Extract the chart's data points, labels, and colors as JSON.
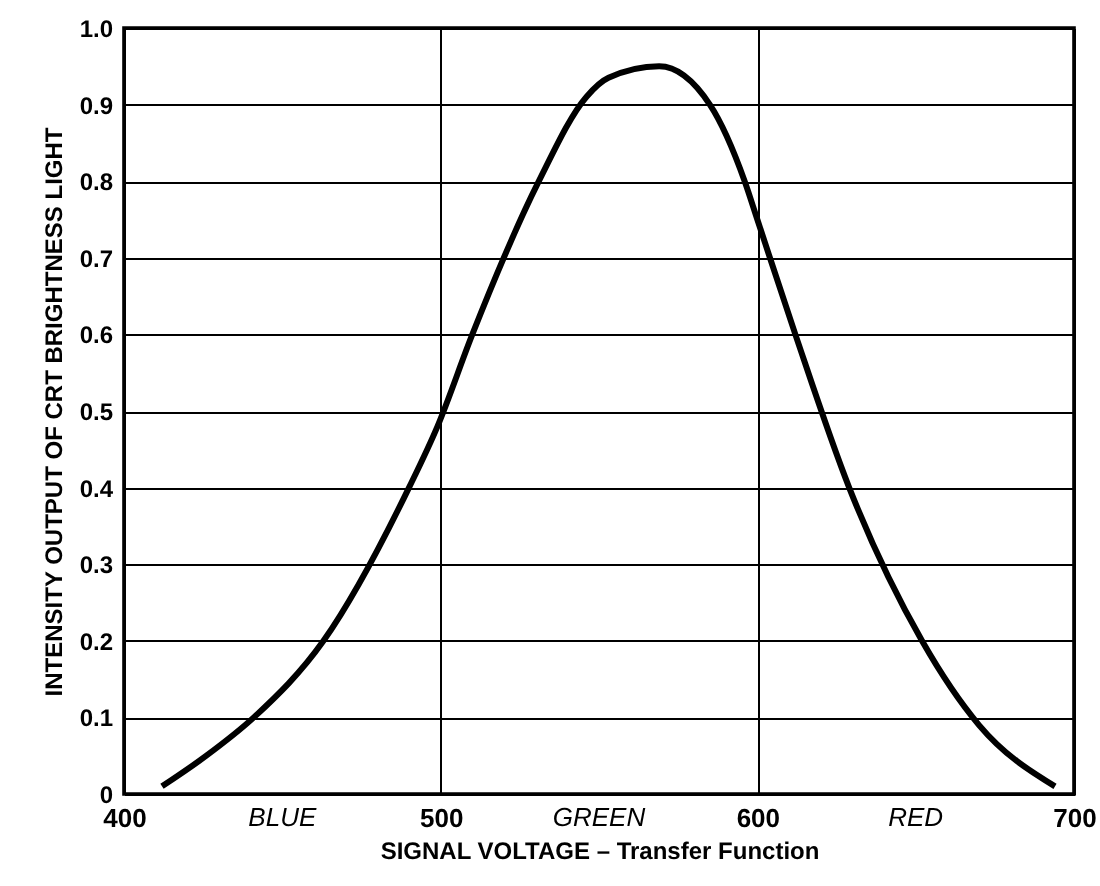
{
  "chart_data": {
    "type": "line",
    "xlabel": "SIGNAL VOLTAGE – Transfer Function",
    "ylabel": "INTENSITY OUTPUT OF CRT BRIGHTNESS LIGHT",
    "x": [
      412,
      426,
      441,
      463,
      490,
      499,
      510,
      531,
      546,
      553,
      569,
      585,
      596,
      600,
      612,
      629,
      652,
      670,
      694
    ],
    "series": [
      {
        "color": "#000000",
        "values": [
          0.01,
          0.05,
          0.1,
          0.2,
          0.4,
          0.48,
          0.6,
          0.8,
          0.91,
          0.935,
          0.95,
          0.9,
          0.8,
          0.75,
          0.6,
          0.4,
          0.2,
          0.09,
          0.01
        ]
      }
    ],
    "xlim": [
      400,
      700
    ],
    "xticks": [
      400,
      500,
      600,
      700
    ],
    "ylim": [
      0,
      1
    ],
    "yticks": [
      0,
      0.1,
      0.2,
      0.3,
      0.4,
      0.5,
      0.6,
      0.7,
      0.8,
      0.9,
      {
        "value": 1,
        "label": "1.0"
      }
    ],
    "grid": true,
    "marker": "none",
    "line_style": "solid",
    "annotations": [
      "BLUE",
      "GREEN",
      "RED"
    ]
  }
}
